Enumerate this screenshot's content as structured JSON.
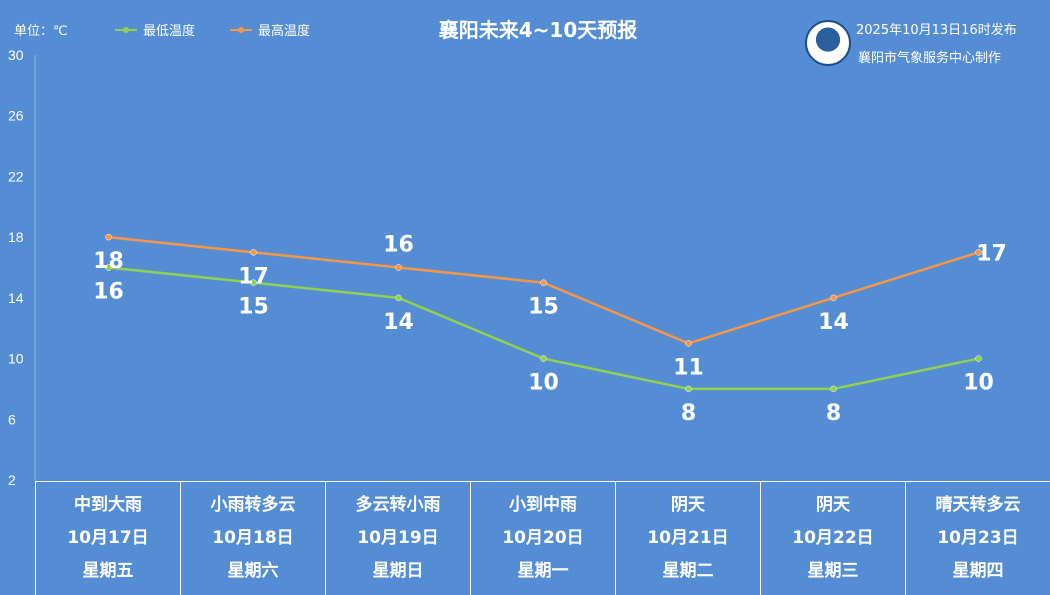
{
  "header": {
    "unit": "单位：℃",
    "title": "襄阳未来4~10天预报",
    "published": "2025年10月13日16时发布",
    "maker": "襄阳市气象服务中心制作",
    "logo_icon": "xiangyang-meteorology-logo"
  },
  "colors": {
    "background": "#548dd4",
    "low": "#92d050",
    "high": "#f79646"
  },
  "chart_data": {
    "type": "line",
    "title": "襄阳未来4~10天预报",
    "unit": "℃",
    "ylim": [
      2,
      30
    ],
    "yticks": [
      2,
      6,
      10,
      14,
      18,
      22,
      26,
      30
    ],
    "categories": [
      "10月17日",
      "10月18日",
      "10月19日",
      "10月20日",
      "10月21日",
      "10月22日",
      "10月23日"
    ],
    "series": [
      {
        "name": "最低温度",
        "values": [
          16,
          15,
          14,
          10,
          8,
          8,
          10
        ]
      },
      {
        "name": "最高温度",
        "values": [
          18,
          17,
          16,
          15,
          11,
          14,
          17
        ]
      }
    ],
    "legend": "top-left",
    "grid": false
  },
  "days": [
    {
      "weather": "中到大雨",
      "date": "10月17日",
      "weekday": "星期五"
    },
    {
      "weather": "小雨转多云",
      "date": "10月18日",
      "weekday": "星期六"
    },
    {
      "weather": "多云转小雨",
      "date": "10月19日",
      "weekday": "星期日"
    },
    {
      "weather": "小到中雨",
      "date": "10月20日",
      "weekday": "星期一"
    },
    {
      "weather": "阴天",
      "date": "10月21日",
      "weekday": "星期二"
    },
    {
      "weather": "阴天",
      "date": "10月22日",
      "weekday": "星期三"
    },
    {
      "weather": "晴天转多云",
      "date": "10月23日",
      "weekday": "星期四"
    }
  ]
}
